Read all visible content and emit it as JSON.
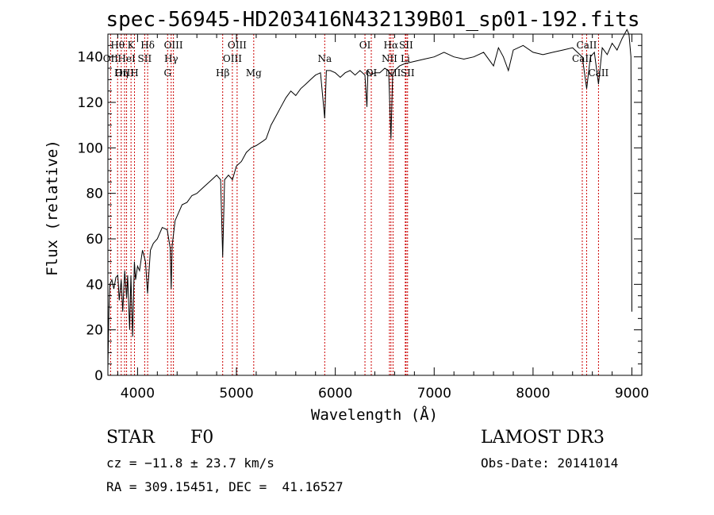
{
  "chart_data": {
    "type": "line",
    "title": "spec-56945-HD203416N432139B01_sp01-192.fits",
    "xlabel": "Wavelength (Å)",
    "ylabel": "Flux (relative)",
    "xlim": [
      3700,
      9100
    ],
    "ylim": [
      0,
      150
    ],
    "xticks": [
      4000,
      5000,
      6000,
      7000,
      8000,
      9000
    ],
    "yticks": [
      0,
      20,
      40,
      60,
      80,
      100,
      120,
      140
    ],
    "series": [
      {
        "name": "flux",
        "x": [
          3700,
          3710,
          3720,
          3740,
          3760,
          3780,
          3800,
          3815,
          3835,
          3850,
          3870,
          3889,
          3900,
          3920,
          3933,
          3950,
          3968,
          3980,
          4000,
          4020,
          4050,
          4080,
          4101,
          4130,
          4160,
          4200,
          4250,
          4300,
          4330,
          4340,
          4350,
          4380,
          4450,
          4500,
          4550,
          4600,
          4650,
          4700,
          4750,
          4800,
          4840,
          4861,
          4880,
          4920,
          4960,
          5000,
          5050,
          5100,
          5150,
          5200,
          5270,
          5300,
          5350,
          5400,
          5450,
          5500,
          5550,
          5600,
          5650,
          5700,
          5750,
          5800,
          5850,
          5893,
          5910,
          5950,
          6000,
          6050,
          6100,
          6150,
          6200,
          6250,
          6300,
          6320,
          6330,
          6360,
          6400,
          6450,
          6500,
          6540,
          6563,
          6580,
          6600,
          6650,
          6700,
          6800,
          6900,
          7000,
          7100,
          7200,
          7300,
          7400,
          7500,
          7600,
          7650,
          7700,
          7750,
          7800,
          7900,
          8000,
          8100,
          8200,
          8300,
          8400,
          8498,
          8542,
          8580,
          8620,
          8662,
          8700,
          8750,
          8800,
          8850,
          8900,
          8950,
          8970,
          8990,
          9000
        ],
        "values": [
          3,
          28,
          40,
          42,
          38,
          43,
          44,
          33,
          42,
          28,
          46,
          34,
          44,
          20,
          44,
          17,
          50,
          42,
          48,
          46,
          55,
          50,
          36,
          55,
          58,
          60,
          65,
          64,
          56,
          38,
          57,
          68,
          75,
          76,
          79,
          80,
          82,
          84,
          86,
          88,
          86,
          52,
          86,
          88,
          86,
          92,
          94,
          98,
          100,
          101,
          103,
          104,
          110,
          114,
          118,
          122,
          125,
          123,
          126,
          128,
          130,
          132,
          133,
          113,
          134,
          134,
          133,
          131,
          133,
          134,
          132,
          134,
          132,
          118,
          134,
          132,
          133,
          133,
          135,
          134,
          104,
          132,
          134,
          136,
          137,
          138,
          139,
          140,
          142,
          140,
          139,
          140,
          142,
          136,
          144,
          140,
          134,
          143,
          145,
          142,
          141,
          142,
          143,
          144,
          140,
          126,
          140,
          142,
          128,
          144,
          141,
          146,
          143,
          148,
          152,
          150,
          140,
          28
        ]
      }
    ],
    "spectral_lines": [
      {
        "label": "Hθ",
        "wavelength": 3798,
        "row": 0
      },
      {
        "label": "OII",
        "wavelength": 3727,
        "row": 1
      },
      {
        "label": "OIII",
        "wavelength": 3869,
        "row": 2
      },
      {
        "label": "K",
        "wavelength": 3934,
        "row": 0
      },
      {
        "label": "HeI",
        "wavelength": 3889,
        "row": 1
      },
      {
        "label": "Hη",
        "wavelength": 3835,
        "row": 2
      },
      {
        "label": "H",
        "wavelength": 3969,
        "row": 2
      },
      {
        "label": "Hδ",
        "wavelength": 4102,
        "row": 0
      },
      {
        "label": "SII",
        "wavelength": 4072,
        "row": 1
      },
      {
        "label": "OIII",
        "wavelength": 4363,
        "row": 0
      },
      {
        "label": "Hγ",
        "wavelength": 4340,
        "row": 1
      },
      {
        "label": "G",
        "wavelength": 4304,
        "row": 2
      },
      {
        "label": "Hβ",
        "wavelength": 4861,
        "row": 2
      },
      {
        "label": "OIII",
        "wavelength": 5007,
        "row": 0
      },
      {
        "label": "OIII",
        "wavelength": 4959,
        "row": 1
      },
      {
        "label": "Mg",
        "wavelength": 5175,
        "row": 2
      },
      {
        "label": "Na",
        "wavelength": 5893,
        "row": 1
      },
      {
        "label": "OI",
        "wavelength": 6300,
        "row": 0
      },
      {
        "label": "OI",
        "wavelength": 6364,
        "row": 2
      },
      {
        "label": "Hα",
        "wavelength": 6563,
        "row": 0
      },
      {
        "label": "SII",
        "wavelength": 6716,
        "row": 0
      },
      {
        "label": "NII",
        "wavelength": 6548,
        "row": 1
      },
      {
        "label": "Li",
        "wavelength": 6708,
        "row": 1
      },
      {
        "label": "NII",
        "wavelength": 6584,
        "row": 2
      },
      {
        "label": "SII",
        "wavelength": 6731,
        "row": 2
      },
      {
        "label": "CaII",
        "wavelength": 8542,
        "row": 0
      },
      {
        "label": "CaII",
        "wavelength": 8498,
        "row": 1
      },
      {
        "label": "CaII",
        "wavelength": 8662,
        "row": 2
      }
    ]
  },
  "info": {
    "object_class": "STAR",
    "subclass": "F0",
    "survey": "LAMOST DR3",
    "redshift_text": "cz = −11.8 ± 23.7 km/s",
    "obs_date_text": "Obs-Date: 20141014",
    "coords_text": "RA = 309.15451, DEC =  41.16527"
  },
  "colors": {
    "spectrum": "#000000",
    "line_marker": "#cc0000",
    "axis": "#000000",
    "background": "#ffffff"
  }
}
